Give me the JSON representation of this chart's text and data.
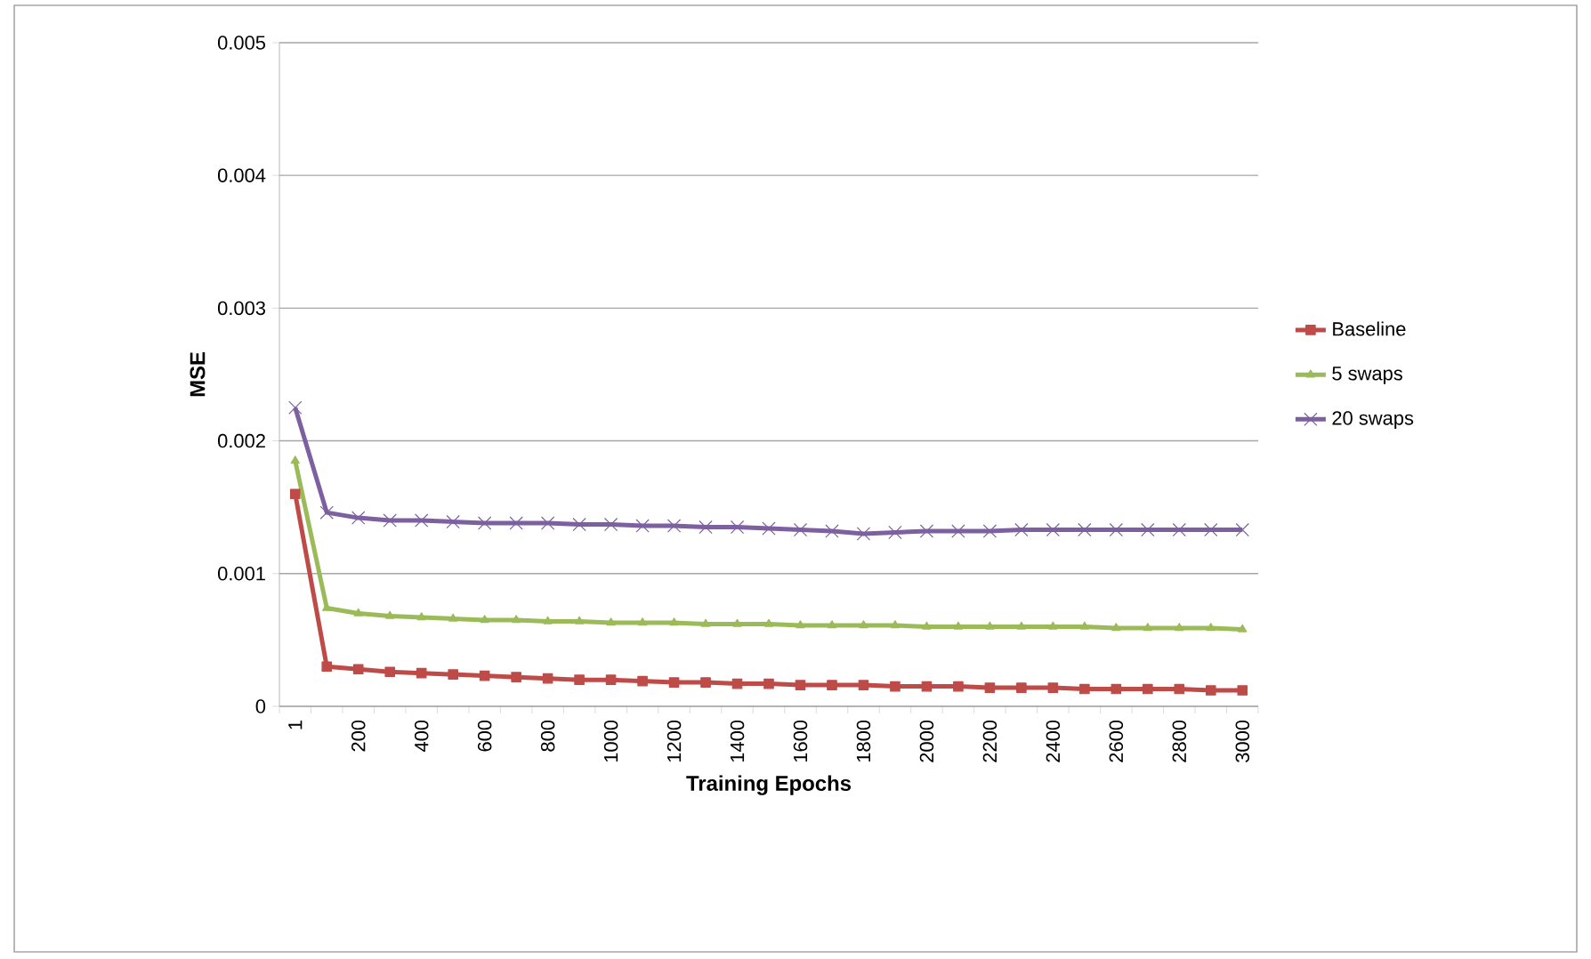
{
  "chart_data": {
    "type": "line",
    "xlabel": "Training Epochs",
    "ylabel": "MSE",
    "categories": [
      "1",
      null,
      "200",
      null,
      "400",
      null,
      "600",
      null,
      "800",
      null,
      "1000",
      null,
      "1200",
      null,
      "1400",
      null,
      "1600",
      null,
      "1800",
      null,
      "2000",
      null,
      "2200",
      null,
      "2400",
      null,
      "2600",
      null,
      "2800",
      null,
      "3000"
    ],
    "series": [
      {
        "name": "Baseline",
        "color": "#be4b48",
        "marker": "square",
        "values": [
          0.0016,
          0.0003,
          0.00028,
          0.00026,
          0.00025,
          0.00024,
          0.00023,
          0.00022,
          0.00021,
          0.0002,
          0.0002,
          0.00019,
          0.00018,
          0.00018,
          0.00017,
          0.00017,
          0.00016,
          0.00016,
          0.00016,
          0.00015,
          0.00015,
          0.00015,
          0.00014,
          0.00014,
          0.00014,
          0.00013,
          0.00013,
          0.00013,
          0.00013,
          0.00012,
          0.00012
        ]
      },
      {
        "name": "5 swaps",
        "color": "#9bbb59",
        "marker": "triangle",
        "values": [
          0.00185,
          0.00074,
          0.0007,
          0.00068,
          0.00067,
          0.00066,
          0.00065,
          0.00065,
          0.00064,
          0.00064,
          0.00063,
          0.00063,
          0.00063,
          0.00062,
          0.00062,
          0.00062,
          0.00061,
          0.00061,
          0.00061,
          0.00061,
          0.0006,
          0.0006,
          0.0006,
          0.0006,
          0.0006,
          0.0006,
          0.00059,
          0.00059,
          0.00059,
          0.00059,
          0.00058
        ]
      },
      {
        "name": "20 swaps",
        "color": "#7d60a0",
        "marker": "cross",
        "values": [
          0.00225,
          0.00146,
          0.00142,
          0.0014,
          0.0014,
          0.00139,
          0.00138,
          0.00138,
          0.00138,
          0.00137,
          0.00137,
          0.00136,
          0.00136,
          0.00135,
          0.00135,
          0.00134,
          0.00133,
          0.00132,
          0.0013,
          0.00131,
          0.00132,
          0.00132,
          0.00132,
          0.00133,
          0.00133,
          0.00133,
          0.00133,
          0.00133,
          0.00133,
          0.00133,
          0.00133
        ]
      }
    ],
    "ylim": [
      0,
      0.005
    ],
    "yticks": [
      0,
      0.001,
      0.002,
      0.003,
      0.004,
      0.005
    ],
    "grid": "y",
    "legend": "right",
    "line_style": "solid"
  }
}
